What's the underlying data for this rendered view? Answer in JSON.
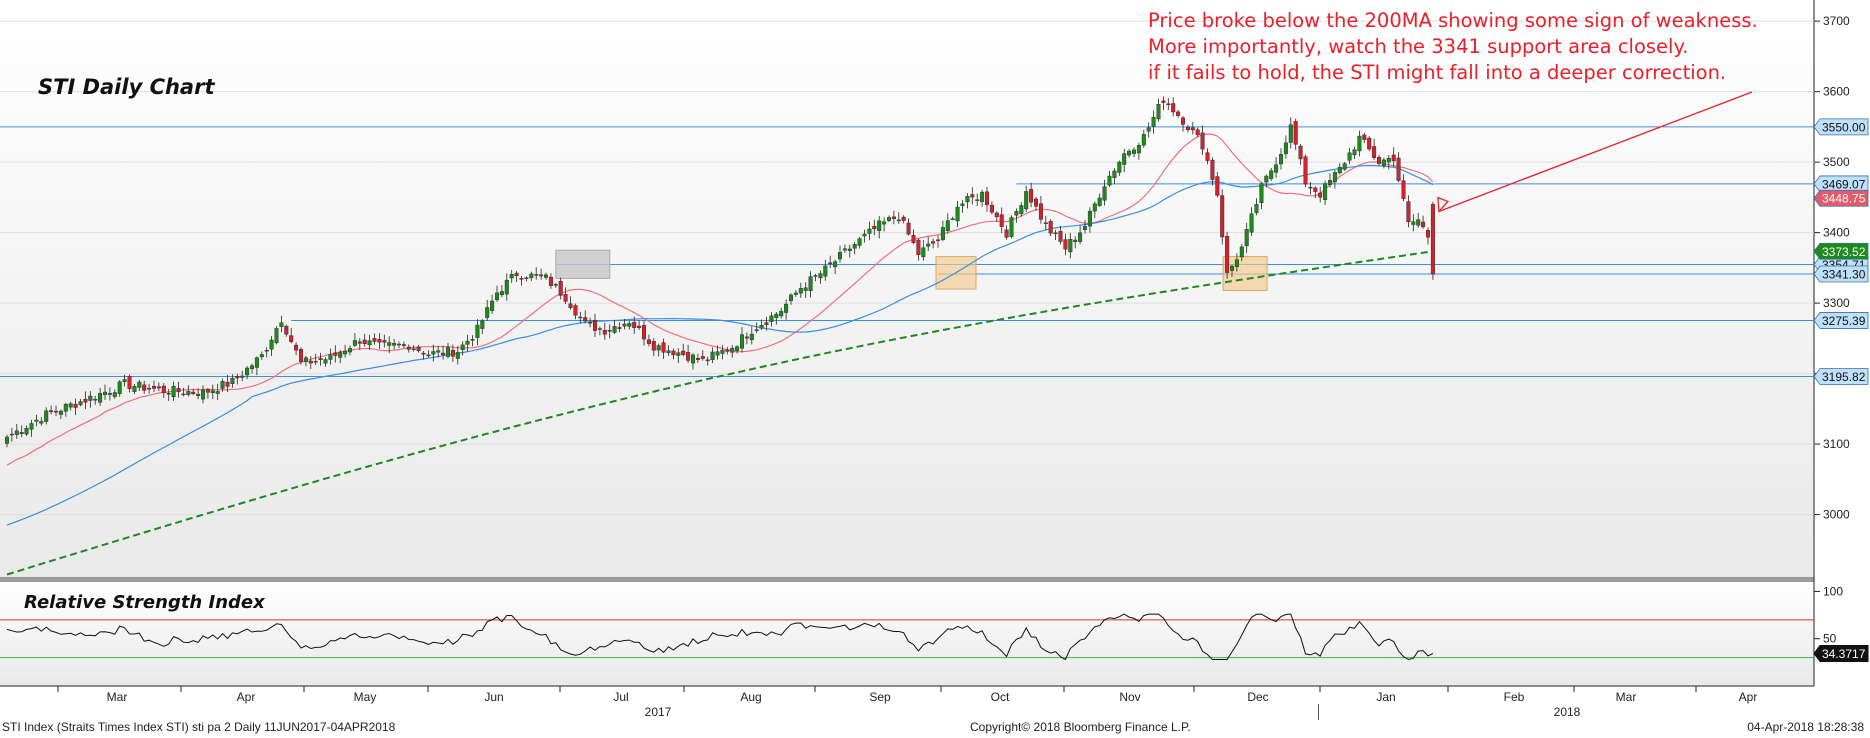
{
  "chart_data": {
    "type": "candlestick",
    "title": "STI Daily Chart",
    "annotation": [
      "Price broke below the 200MA showing some sign of weakness.",
      "More importantly, watch the 3341 support area closely.",
      "if it fails to hold, the STI might fall into a deeper correction."
    ],
    "ylim": [
      2910,
      3730
    ],
    "yticks": [
      3000,
      3100,
      3200,
      3300,
      3400,
      3500,
      3600,
      3700
    ],
    "months": [
      "Mar",
      "Apr",
      "May",
      "Jun",
      "Jul",
      "Aug",
      "Sep",
      "Oct",
      "Nov",
      "Dec",
      "Jan",
      "Feb",
      "Mar",
      "Apr"
    ],
    "years": [
      "2017",
      "2018"
    ],
    "anchors": [
      {
        "bar": 0,
        "close": 3110
      },
      {
        "bar": 8,
        "close": 3142
      },
      {
        "bar": 16,
        "close": 3163
      },
      {
        "bar": 24,
        "close": 3185
      },
      {
        "bar": 32,
        "close": 3176
      },
      {
        "bar": 40,
        "close": 3173
      },
      {
        "bar": 46,
        "close": 3188
      },
      {
        "bar": 52,
        "close": 3225
      },
      {
        "bar": 56,
        "close": 3278
      },
      {
        "bar": 60,
        "close": 3215
      },
      {
        "bar": 66,
        "close": 3222
      },
      {
        "bar": 72,
        "close": 3248
      },
      {
        "bar": 76,
        "close": 3238
      },
      {
        "bar": 82,
        "close": 3241
      },
      {
        "bar": 86,
        "close": 3228
      },
      {
        "bar": 92,
        "close": 3232
      },
      {
        "bar": 96,
        "close": 3262
      },
      {
        "bar": 100,
        "close": 3315
      },
      {
        "bar": 104,
        "close": 3342
      },
      {
        "bar": 110,
        "close": 3335
      },
      {
        "bar": 114,
        "close": 3309
      },
      {
        "bar": 118,
        "close": 3270
      },
      {
        "bar": 122,
        "close": 3262
      },
      {
        "bar": 127,
        "close": 3275
      },
      {
        "bar": 132,
        "close": 3240
      },
      {
        "bar": 138,
        "close": 3228
      },
      {
        "bar": 142,
        "close": 3218
      },
      {
        "bar": 148,
        "close": 3238
      },
      {
        "bar": 152,
        "close": 3262
      },
      {
        "bar": 158,
        "close": 3290
      },
      {
        "bar": 162,
        "close": 3322
      },
      {
        "bar": 167,
        "close": 3347
      },
      {
        "bar": 172,
        "close": 3378
      },
      {
        "bar": 178,
        "close": 3410
      },
      {
        "bar": 182,
        "close": 3424
      },
      {
        "bar": 186,
        "close": 3370
      },
      {
        "bar": 190,
        "close": 3390
      },
      {
        "bar": 194,
        "close": 3438
      },
      {
        "bar": 199,
        "close": 3455
      },
      {
        "bar": 204,
        "close": 3400
      },
      {
        "bar": 208,
        "close": 3460
      },
      {
        "bar": 212,
        "close": 3410
      },
      {
        "bar": 216,
        "close": 3378
      },
      {
        "bar": 220,
        "close": 3410
      },
      {
        "bar": 224,
        "close": 3470
      },
      {
        "bar": 228,
        "close": 3512
      },
      {
        "bar": 232,
        "close": 3536
      },
      {
        "bar": 236,
        "close": 3590
      },
      {
        "bar": 240,
        "close": 3560
      },
      {
        "bar": 244,
        "close": 3525
      },
      {
        "bar": 247,
        "close": 3455
      },
      {
        "bar": 249,
        "close": 3340
      },
      {
        "bar": 252,
        "close": 3378
      },
      {
        "bar": 256,
        "close": 3463
      },
      {
        "bar": 260,
        "close": 3515
      },
      {
        "bar": 262,
        "close": 3550
      },
      {
        "bar": 265,
        "close": 3472
      },
      {
        "bar": 268,
        "close": 3455
      },
      {
        "bar": 272,
        "close": 3490
      },
      {
        "bar": 276,
        "close": 3534
      },
      {
        "bar": 280,
        "close": 3500
      },
      {
        "bar": 283,
        "close": 3507
      },
      {
        "bar": 286,
        "close": 3412
      },
      {
        "bar": 288,
        "close": 3418
      },
      {
        "bar": 290,
        "close": 3395
      },
      {
        "bar": 291,
        "close": 3341
      }
    ],
    "levels": [
      {
        "value": 3550.0,
        "label": "3550.00"
      },
      {
        "value": 3469.07,
        "label": "3469.07"
      },
      {
        "value": 3354.71,
        "label": "3354.71"
      },
      {
        "value": 3341.3,
        "label": "3341.30"
      },
      {
        "value": 3275.39,
        "label": "3275.39"
      },
      {
        "value": 3195.82,
        "label": "3195.82"
      }
    ],
    "last_labels": [
      {
        "value": 3448.75,
        "label": "3448.75",
        "color": "#e35a6a"
      },
      {
        "value": 3373.52,
        "label": "3373.52",
        "color": "#1e8a1e"
      }
    ],
    "series": [
      {
        "name": "",
        "kind": "ma",
        "period": 20,
        "color": "#f07080"
      },
      {
        "name": "",
        "kind": "ma",
        "period": 50,
        "color": "#3a8fe0"
      },
      {
        "name": "",
        "kind": "ma",
        "period": 200,
        "color": "#1e8a1e"
      }
    ],
    "rsi": {
      "title": "Relative Strength Index",
      "ylim": [
        0,
        110
      ],
      "yticks": [
        50,
        100
      ],
      "upper": 70,
      "lower": 30,
      "last_label": "34.3717"
    }
  },
  "colors": {
    "up": "#1e8a1e",
    "down": "#d0232d",
    "annotation": "#e8202a",
    "level": "#3a8fe0",
    "label_bg": "#bfe0fa"
  },
  "footer": {
    "left": "STI Index (Straits Times Index STI) sti pa 2  Daily 11JUN2017-04APR2018",
    "center": "Copyright© 2018 Bloomberg Finance L.P.",
    "right": "04-Apr-2018 18:28:38"
  }
}
